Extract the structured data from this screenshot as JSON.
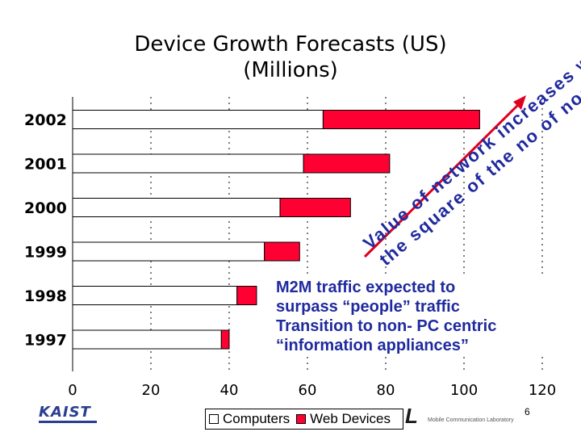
{
  "slide": {
    "title_line1": "Device Growth Forecasts (US)",
    "title_line2": "(Millions)",
    "callout_lines": [
      "M2M traffic expected to",
      "surpass “people” traffic",
      "Transition to non- PC centric",
      "“information appliances”"
    ],
    "diagonal_upper": "Value of network increases with",
    "diagonal_lower": "the square of the no of nodes",
    "logo_left": "KAIST",
    "logo_right": "L",
    "lab_name": "Mobile Communication Laboratory",
    "page_number": "6"
  },
  "chart_data": {
    "type": "bar",
    "orientation": "horizontal",
    "stacked": true,
    "categories": [
      "2002",
      "2001",
      "2000",
      "1999",
      "1998",
      "1997"
    ],
    "series": [
      {
        "name": "Computers",
        "values": [
          64,
          59,
          53,
          49,
          42,
          38
        ],
        "color": "#ffffff"
      },
      {
        "name": "Web Devices",
        "values": [
          40,
          22,
          18,
          9,
          5,
          2
        ],
        "color": "#ff0033"
      }
    ],
    "x_ticks": [
      "0",
      "20",
      "40",
      "60",
      "80",
      "100",
      "120"
    ],
    "xlim": [
      0,
      120
    ],
    "legend_position": "bottom",
    "grid": true
  }
}
